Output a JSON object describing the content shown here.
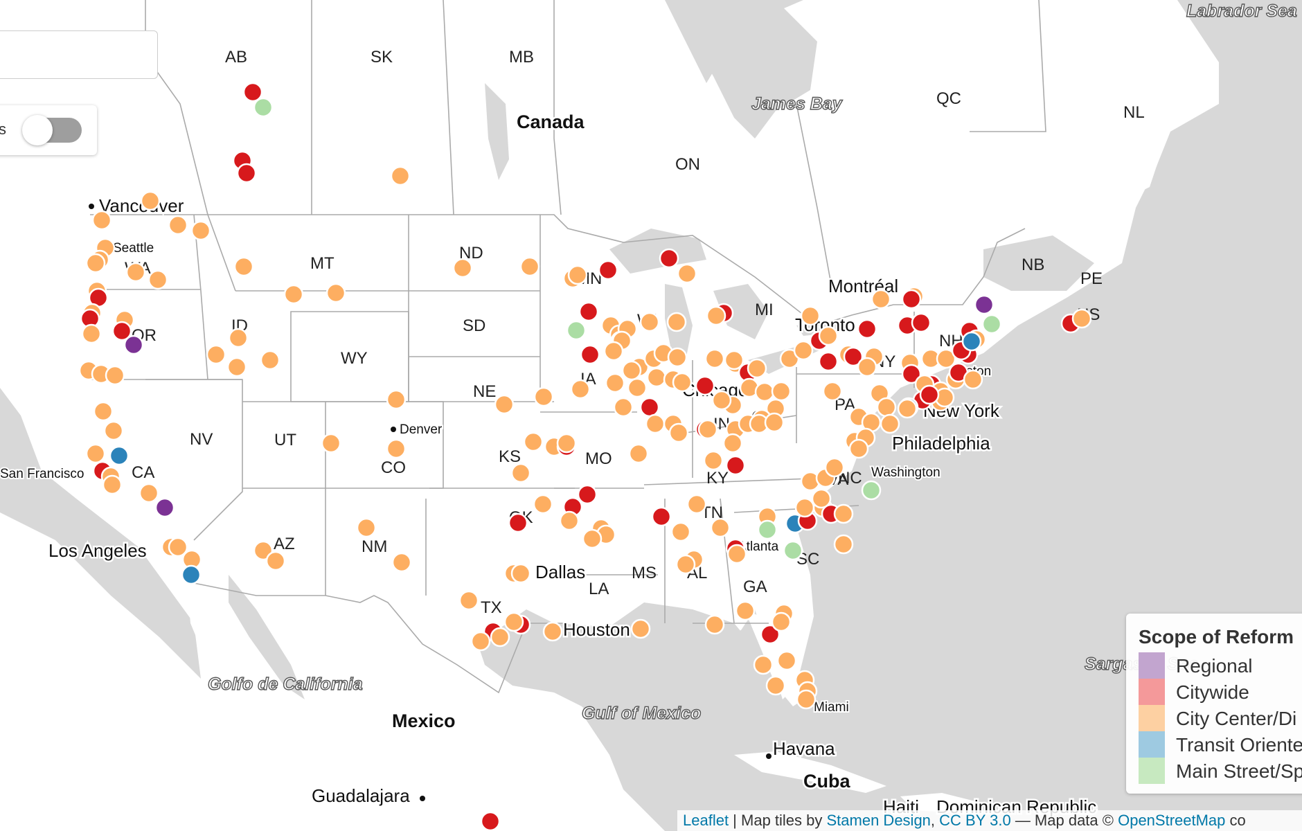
{
  "controls": {
    "search_value": "",
    "toggle_label": "s",
    "toggle_on": false
  },
  "labels": {
    "states": [
      "AB",
      "SK",
      "MB",
      "QC",
      "NL",
      "ON",
      "NB",
      "PE",
      "NS",
      "MT",
      "ND",
      "SD",
      "WY",
      "ID",
      "OR",
      "WA",
      "NV",
      "UT",
      "CO",
      "NE",
      "KS",
      "MO",
      "IA",
      "MN",
      "WI",
      "OK",
      "TX",
      "NM",
      "AZ",
      "LA",
      "MS",
      "AL",
      "GA",
      "SC",
      "TN",
      "KY",
      "NC",
      "VA",
      "PA",
      "NY",
      "NH",
      "OH",
      "IN",
      "IL",
      "MI",
      "CA"
    ],
    "countries": [
      "Canada",
      "Mexico",
      "Cuba"
    ],
    "water": [
      "James Bay",
      "Labrador Sea",
      "Golfo de California",
      "Gulf of Mexico",
      "Sargasso Sea"
    ],
    "cities": [
      "Vancouver",
      "Seattle",
      "San Francisco",
      "Los Angeles",
      "Denver",
      "Dallas",
      "Houston",
      "Atlanta",
      "Miami",
      "Havana",
      "Guadalajara",
      "Chicago",
      "Toronto",
      "Montréal",
      "Boston",
      "New York",
      "Philadelphia",
      "Washington",
      "Haiti",
      "Dominican Republic"
    ]
  },
  "legend": {
    "title": "Scope of Reform",
    "items": [
      {
        "label": "Regional",
        "color": "#c2a5cf"
      },
      {
        "label": "Citywide",
        "color": "#f4999a"
      },
      {
        "label": "City Center/Di",
        "color": "#fdd0a2"
      },
      {
        "label": "Transit Oriente",
        "color": "#9ecae1"
      },
      {
        "label": "Main Street/Sp",
        "color": "#c7e9c0"
      }
    ]
  },
  "marker_colors": {
    "regional": "#7b3294",
    "citywide": "#d7191c",
    "city_center": "#fdae61",
    "transit": "#2b83ba",
    "main_street": "#abdda4"
  },
  "attribution": {
    "leaflet": "Leaflet",
    "sep1": " | Map tiles by ",
    "stamen": "Stamen Design",
    "comma": ", ",
    "cc": "CC BY 3.0",
    "sep2": " — Map data © ",
    "osm": "OpenStreetMap",
    "tail": " co"
  }
}
